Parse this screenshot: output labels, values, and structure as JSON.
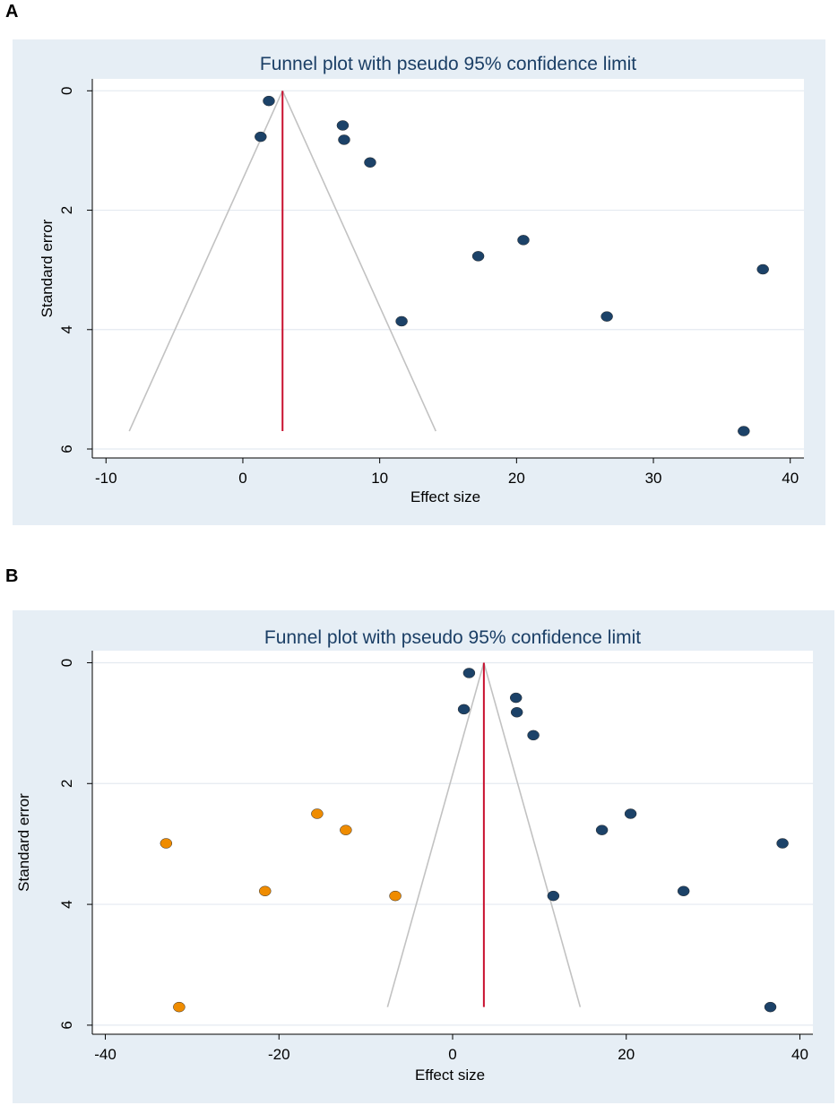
{
  "panels": [
    {
      "label": "A",
      "colors": {
        "panel_bg": "#e6eef5",
        "plot_bg": "#ffffff",
        "grid": "#e4eaf0",
        "funnel": "#c2c2c2",
        "pooled_line": "#c8102e",
        "observed": "#1c4268",
        "imputed": "#ef8c00"
      },
      "chart_data": {
        "type": "scatter",
        "title": "Funnel plot with pseudo 95% confidence limit",
        "xlabel": "Effect size",
        "ylabel": "Standard error",
        "xlim": [
          -11,
          41
        ],
        "ylim": [
          6.15,
          -0.2
        ],
        "y_inverted": true,
        "xticks": [
          -10,
          0,
          10,
          20,
          30,
          40
        ],
        "yticks": [
          0,
          2,
          4,
          6
        ],
        "grid": true,
        "pooled_estimate": 2.9,
        "funnel": {
          "apex": [
            2.9,
            0
          ],
          "base_left": [
            -8.3,
            5.7
          ],
          "base_right": [
            14.1,
            5.7
          ]
        },
        "series": [
          {
            "name": "observed",
            "points": [
              [
                1.9,
                0.17
              ],
              [
                1.3,
                0.77
              ],
              [
                7.3,
                0.58
              ],
              [
                7.4,
                0.82
              ],
              [
                9.3,
                1.2
              ],
              [
                17.2,
                2.77
              ],
              [
                20.5,
                2.5
              ],
              [
                11.6,
                3.86
              ],
              [
                26.6,
                3.78
              ],
              [
                38.0,
                2.99
              ],
              [
                36.6,
                5.7
              ]
            ]
          }
        ]
      }
    },
    {
      "label": "B",
      "colors": {
        "panel_bg": "#e6eef5",
        "plot_bg": "#ffffff",
        "grid": "#e4eaf0",
        "funnel": "#c2c2c2",
        "pooled_line": "#c8102e",
        "observed": "#1c4268",
        "imputed": "#ef8c00"
      },
      "chart_data": {
        "type": "scatter",
        "title": "Funnel plot with pseudo 95% confidence limit",
        "xlabel": "Effect size",
        "ylabel": "Standard error",
        "xlim": [
          -41.5,
          41.5
        ],
        "ylim": [
          6.15,
          -0.2
        ],
        "y_inverted": true,
        "xticks": [
          -40,
          -20,
          0,
          20,
          40
        ],
        "yticks": [
          0,
          2,
          4,
          6
        ],
        "grid": true,
        "pooled_estimate": 3.6,
        "funnel": {
          "apex": [
            3.6,
            0
          ],
          "base_left": [
            -7.5,
            5.7
          ],
          "base_right": [
            14.7,
            5.7
          ]
        },
        "series": [
          {
            "name": "observed",
            "points": [
              [
                1.9,
                0.17
              ],
              [
                1.3,
                0.77
              ],
              [
                7.3,
                0.58
              ],
              [
                7.4,
                0.82
              ],
              [
                9.3,
                1.2
              ],
              [
                17.2,
                2.77
              ],
              [
                20.5,
                2.5
              ],
              [
                11.6,
                3.86
              ],
              [
                26.6,
                3.78
              ],
              [
                38.0,
                2.99
              ],
              [
                36.6,
                5.7
              ]
            ]
          },
          {
            "name": "imputed",
            "points": [
              [
                -15.6,
                2.5
              ],
              [
                -12.3,
                2.77
              ],
              [
                -33.0,
                2.99
              ],
              [
                -21.6,
                3.78
              ],
              [
                -6.6,
                3.86
              ],
              [
                -31.5,
                5.7
              ]
            ]
          }
        ]
      }
    }
  ]
}
